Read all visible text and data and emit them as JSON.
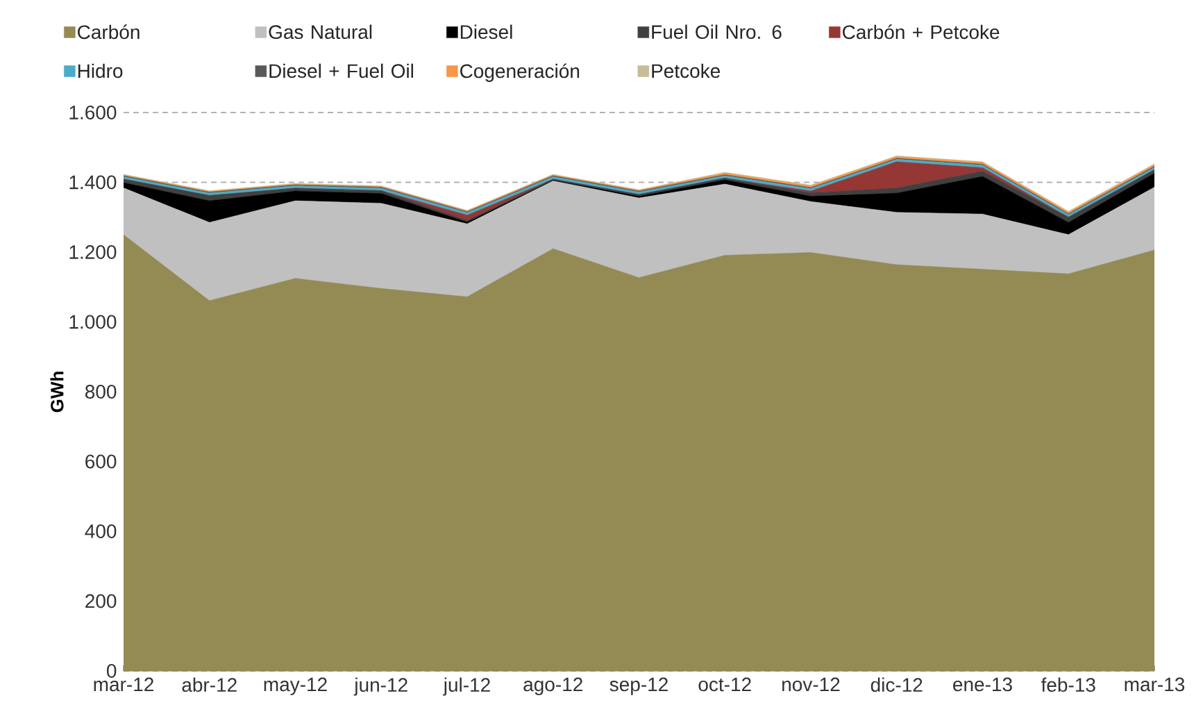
{
  "chart_data": {
    "type": "area",
    "stacked": true,
    "ylabel": "GWh",
    "categories": [
      "mar-12",
      "abr-12",
      "may-12",
      "jun-12",
      "jul-12",
      "ago-12",
      "sep-12",
      "oct-12",
      "nov-12",
      "dic-12",
      "ene-13",
      "feb-13",
      "mar-13"
    ],
    "ylim": [
      0,
      1600
    ],
    "yticks": [
      0,
      200,
      400,
      600,
      800,
      {
        "value": 1000,
        "label": "1.000"
      },
      {
        "value": 1200,
        "label": "1.200"
      },
      {
        "value": 1400,
        "label": "1.400"
      },
      {
        "value": 1600,
        "label": "1.600"
      }
    ],
    "grid": "y",
    "legend": "top",
    "series": [
      {
        "name": "Carbón",
        "color": "#948a54",
        "values": [
          1250,
          1061,
          1125,
          1096,
          1072,
          1210,
          1127,
          1191,
          1199,
          1164,
          1151,
          1138,
          1206
        ]
      },
      {
        "name": "Gas Natural",
        "color": "#c0c0c0",
        "values": [
          134,
          224,
          222,
          244,
          209,
          194,
          228,
          204,
          146,
          150,
          158,
          112,
          180
        ]
      },
      {
        "name": "Diesel",
        "color": "#000000",
        "values": [
          15,
          62,
          28,
          28,
          5,
          2,
          5,
          12,
          15,
          55,
          108,
          35,
          40
        ]
      },
      {
        "name": "Fuel Oil Nro. 6",
        "color": "#404040",
        "values": [
          10,
          15,
          8,
          8,
          5,
          3,
          5,
          5,
          10,
          15,
          15,
          15,
          10
        ]
      },
      {
        "name": "Carbón + Petcoke",
        "color": "#953735",
        "values": [
          0,
          0,
          0,
          0,
          15,
          0,
          0,
          0,
          5,
          75,
          10,
          0,
          0
        ]
      },
      {
        "name": "Hidro",
        "color": "#4bacc6",
        "values": [
          7,
          7,
          7,
          7,
          7,
          7,
          7,
          7,
          7,
          7,
          7,
          7,
          7
        ]
      },
      {
        "name": "Diesel + Fuel Oil",
        "color": "#595959",
        "values": [
          3,
          3,
          3,
          3,
          3,
          3,
          3,
          3,
          3,
          3,
          3,
          3,
          3
        ]
      },
      {
        "name": "Cogeneración",
        "color": "#f79646",
        "values": [
          2,
          2,
          2,
          2,
          2,
          2,
          2,
          5,
          5,
          5,
          5,
          5,
          5
        ]
      },
      {
        "name": "Petcoke",
        "color": "#c4bd97",
        "values": [
          2,
          2,
          2,
          2,
          2,
          2,
          2,
          2,
          2,
          2,
          2,
          2,
          2
        ]
      }
    ]
  }
}
